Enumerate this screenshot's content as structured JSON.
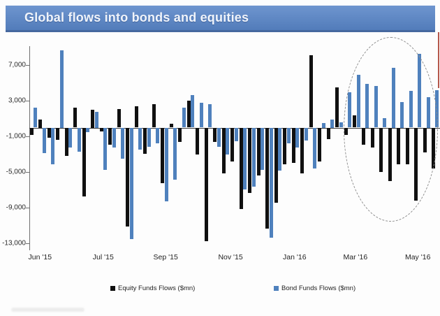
{
  "banner": {
    "title": "Global flows into bonds and equities",
    "bg_color": "#5b85c4",
    "text_color": "#f0f4fb"
  },
  "legend": {
    "equity_label": "Equity Funds Flows ($mn)",
    "bond_label": "Bond Funds Flows ($mn)"
  },
  "colors": {
    "equity_bar": "#101010",
    "bond_bar": "#4f81bd",
    "axis": "#6f6f6f",
    "ellipse": "#8f8f8f",
    "red_artifact": "#a8392c"
  },
  "chart_data": {
    "type": "bar",
    "title": "Global flows into bonds and equities",
    "xlabel": "",
    "ylabel": "",
    "unit": "$mn",
    "frequency": "weekly",
    "grid": false,
    "legend_position": "bottom",
    "ylim": [
      -13600,
      9600
    ],
    "y_ticks": [
      7000,
      3000,
      -1000,
      -5000,
      -9000,
      -13000
    ],
    "y_tick_labels": [
      "7,000",
      "3,000",
      "-1,000",
      "-5,000",
      "-9,000",
      "-13,000"
    ],
    "x_labels": [
      "Jun '15",
      "Jul '15",
      "Sep '15",
      "Nov '15",
      "Jan '16",
      "Mar '16",
      "May '16"
    ],
    "x_label_positions_pct": [
      2.6,
      18.0,
      33.2,
      49.0,
      64.6,
      79.4,
      94.6
    ],
    "series": [
      {
        "name": "Equity Funds Flows ($mn)",
        "color": "#101010",
        "values": [
          -800,
          900,
          -1150,
          -1400,
          -3200,
          2250,
          -7750,
          2000,
          -400,
          -1950,
          2050,
          -11100,
          2400,
          -2900,
          2650,
          -6200,
          400,
          -1600,
          3000,
          -3050,
          -12700,
          -1600,
          -5100,
          -3800,
          -9100,
          -7300,
          -5350,
          -11300,
          -8450,
          -4100,
          -3950,
          -5100,
          8100,
          -3800,
          -1300,
          4500,
          -850,
          1400,
          -1950,
          -2200,
          -5000,
          -6000,
          -4150,
          -4100,
          -8200,
          -2800,
          -4550
        ]
      },
      {
        "name": "Bond Funds Flows ($mn)",
        "color": "#4f81bd",
        "values": [
          2200,
          -2850,
          -4150,
          8700,
          -2200,
          -2700,
          -500,
          1800,
          -4750,
          -2200,
          -3500,
          -12500,
          -2450,
          -2150,
          -1750,
          -8250,
          -5800,
          2250,
          3650,
          2750,
          2600,
          -2150,
          -3050,
          -1550,
          -6900,
          -6650,
          -4700,
          -12350,
          -4850,
          -1750,
          -2250,
          -1450,
          -4550,
          550,
          900,
          600,
          3950,
          5950,
          4900,
          4650,
          1050,
          6700,
          2900,
          4150,
          8250,
          3450,
          4200
        ]
      }
    ],
    "annotations": [
      {
        "type": "ellipse",
        "style": "dashed",
        "meaning": "highlight of Mar '16 - May '16 period (bond inflows vs equity outflows)"
      }
    ]
  }
}
